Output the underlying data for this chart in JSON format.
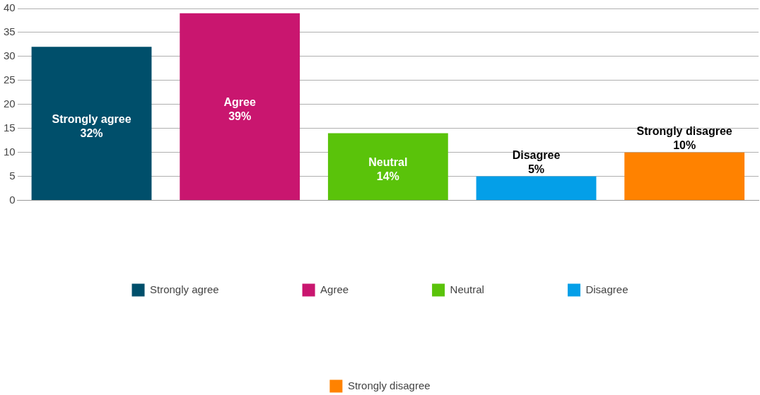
{
  "chart_data": {
    "type": "bar",
    "categories": [
      null,
      null,
      null,
      null,
      null
    ],
    "series": [
      {
        "name": "Strongly agree",
        "color": "#004f6b",
        "values": [
          32,
          null,
          null,
          null,
          null
        ],
        "value_labels": [
          "32%",
          null,
          null,
          null,
          null
        ]
      },
      {
        "name": "Agree",
        "color": "#c9166f",
        "values": [
          null,
          39,
          null,
          null,
          null
        ],
        "value_labels": [
          null,
          "39%",
          null,
          null,
          null
        ]
      },
      {
        "name": "Neutral",
        "color": "#5ac30a",
        "values": [
          null,
          null,
          14,
          null,
          null
        ],
        "value_labels": [
          null,
          null,
          "14%",
          null,
          null
        ]
      },
      {
        "name": "Disagree",
        "color": "#049fe8",
        "values": [
          null,
          null,
          null,
          5,
          null
        ],
        "value_labels": [
          null,
          null,
          null,
          "5%",
          null
        ]
      },
      {
        "name": "Strongly disagree",
        "color": "#ff8200",
        "values": [
          null,
          null,
          null,
          null,
          10
        ],
        "value_labels": [
          null,
          null,
          null,
          null,
          "10%"
        ]
      }
    ],
    "ylim": [
      0,
      40
    ],
    "yticks": [
      0,
      5,
      10,
      15,
      20,
      25,
      30,
      35,
      40
    ],
    "grid": "y",
    "legend": "bottom"
  }
}
